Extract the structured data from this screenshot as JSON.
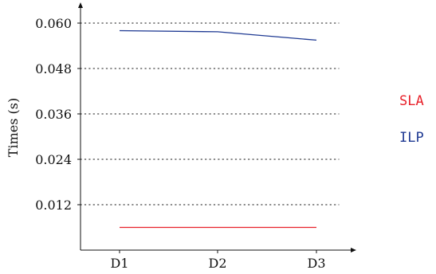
{
  "chart_data": {
    "type": "line",
    "ylabel": "Times (s)",
    "categories": [
      "D1",
      "D2",
      "D3"
    ],
    "y_ticks": [
      "0.012",
      "0.024",
      "0.036",
      "0.048",
      "0.060"
    ],
    "ylim": [
      0,
      0.064
    ],
    "grid": "horizontal-dotted",
    "legend_placement": "right",
    "series": [
      {
        "name": "SLA",
        "color": "#e8222b",
        "values": [
          0.006,
          0.006,
          0.006
        ]
      },
      {
        "name": "ILP",
        "color": "#1f3a93",
        "values": [
          0.058,
          0.0577,
          0.0555
        ]
      }
    ]
  }
}
